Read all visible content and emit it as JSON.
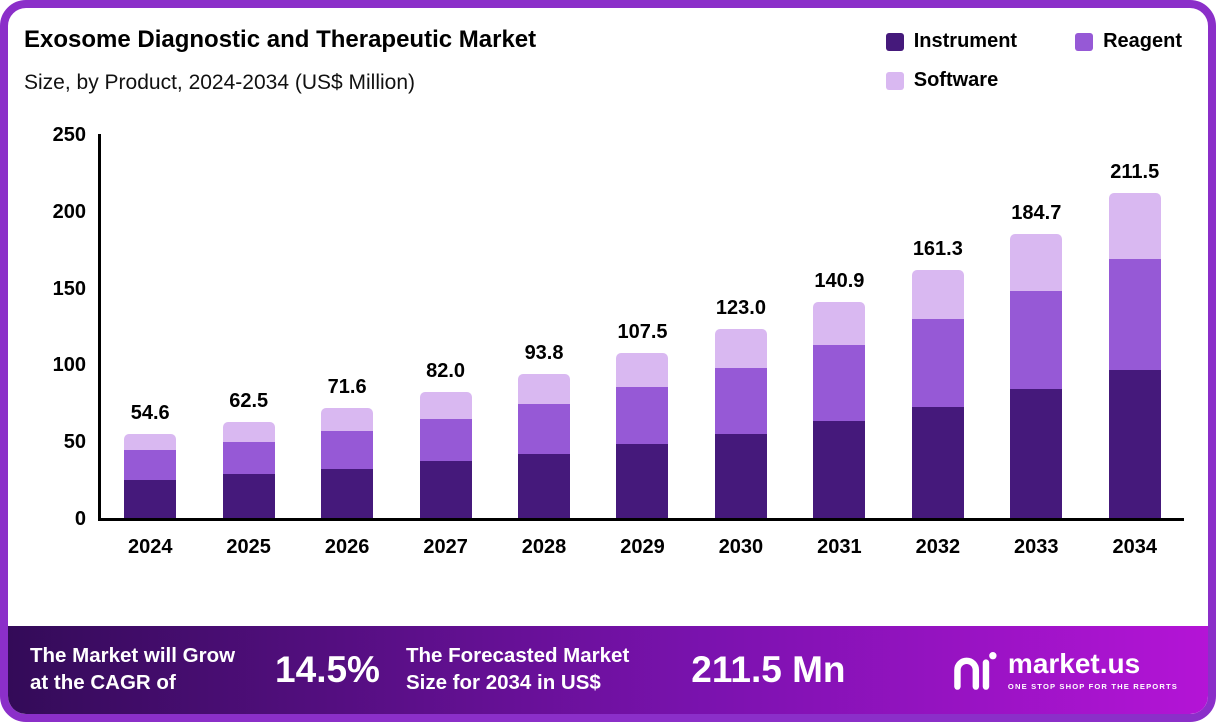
{
  "header": {
    "title": "Exosome Diagnostic and Therapeutic Market",
    "subtitle": "Size, by Product, 2024-2034 (US$ Million)"
  },
  "legend": [
    {
      "label": "Instrument",
      "color": "#45197b"
    },
    {
      "label": "Reagent",
      "color": "#9659d6"
    },
    {
      "label": "Software",
      "color": "#d9b8f1"
    }
  ],
  "chart_data": {
    "type": "bar",
    "stacked": true,
    "title": "Exosome Diagnostic and Therapeutic Market Size, by Product, 2024-2034 (US$ Million)",
    "categories": [
      "2024",
      "2025",
      "2026",
      "2027",
      "2028",
      "2029",
      "2030",
      "2031",
      "2032",
      "2033",
      "2034"
    ],
    "series": [
      {
        "name": "Instrument",
        "color": "#45197b",
        "values": [
          25.0,
          28.5,
          32.0,
          37.0,
          42.0,
          48.0,
          55.0,
          63.0,
          72.5,
          84.0,
          96.5
        ]
      },
      {
        "name": "Reagent",
        "color": "#9659d6",
        "values": [
          19.5,
          21.0,
          24.5,
          27.5,
          32.0,
          37.5,
          43.0,
          49.5,
          57.0,
          64.0,
          72.0
        ]
      },
      {
        "name": "Software",
        "color": "#d9b8f1",
        "values": [
          10.1,
          13.0,
          15.1,
          17.5,
          19.8,
          22.0,
          25.0,
          28.4,
          31.8,
          36.7,
          43.0
        ]
      }
    ],
    "totals": [
      54.6,
      62.5,
      71.6,
      82.0,
      93.8,
      107.5,
      123.0,
      140.9,
      161.3,
      184.7,
      211.5
    ],
    "total_labels": [
      "54.6",
      "62.5",
      "71.6",
      "82.0",
      "93.8",
      "107.5",
      "123.0",
      "140.9",
      "161.3",
      "184.7",
      "211.5"
    ],
    "xlabel": "",
    "ylabel": "",
    "ylim": [
      0,
      250
    ],
    "yticks": [
      0,
      50,
      100,
      150,
      200,
      250
    ],
    "grid": false,
    "legend_position": "top-right"
  },
  "footer": {
    "cagr_text_line1": "The Market will Grow",
    "cagr_text_line2": "at the CAGR of",
    "cagr_value": "14.5%",
    "forecast_text_line1": "The Forecasted Market",
    "forecast_text_line2": "Size for 2034 in US$",
    "forecast_value": "211.5 Mn",
    "brand": "market.us",
    "brand_tagline": "ONE STOP SHOP FOR THE REPORTS"
  },
  "colors": {
    "frame_border": "#8b2fc9",
    "instrument": "#45197b",
    "reagent": "#9659d6",
    "software": "#d9b8f1",
    "axis": "#000000",
    "footer_gradient_start": "#330b58",
    "footer_gradient_end": "#b414d6",
    "footer_text": "#ffffff"
  }
}
